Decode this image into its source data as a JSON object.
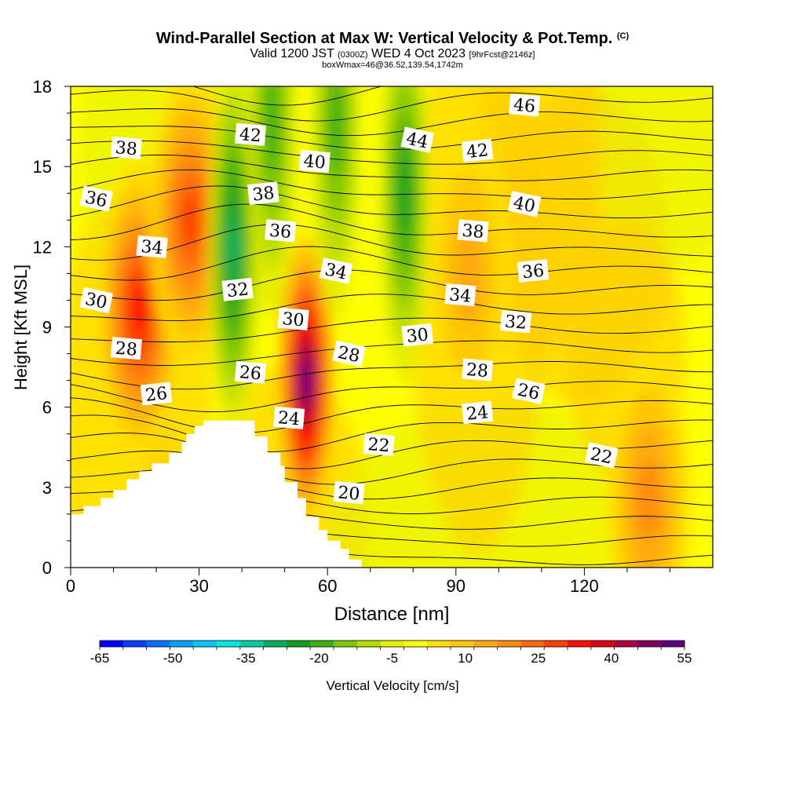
{
  "header": {
    "title": "Wind-Parallel Section at Max W: Vertical Velocity & Pot.Temp.",
    "copyright": "(C)",
    "valid_prefix": "Valid 1200 JST",
    "valid_utc": "(0300Z)",
    "valid_date": "WED 4 Oct 2023",
    "forecast": "[9hrFcst@2146z]",
    "box_info": "boxWmax=46@36.52,139.54,1742m"
  },
  "chart_data": {
    "type": "heatmap",
    "xlabel": "Distance [nm]",
    "ylabel": "Height [Kft MSL]",
    "xlim": [
      0,
      150
    ],
    "ylim": [
      0,
      18
    ],
    "x_ticks": [
      0,
      30,
      60,
      90,
      120
    ],
    "y_ticks": [
      0,
      3,
      6,
      9,
      12,
      15,
      18
    ],
    "colorbar": {
      "label": "Vertical Velocity [cm/s]",
      "tick_labels": [
        "-65",
        "-50",
        "-35",
        "-20",
        "-5",
        "10",
        "25",
        "40",
        "55"
      ],
      "colors": [
        "#0000ff",
        "#0040ff",
        "#0070ff",
        "#00a0ff",
        "#00c8ff",
        "#00e8e0",
        "#00d0a0",
        "#00b060",
        "#10a020",
        "#40b010",
        "#80c800",
        "#b8dc00",
        "#e6ee00",
        "#ffff00",
        "#ffe000",
        "#ffc800",
        "#ffaa10",
        "#ff8c10",
        "#ff6a10",
        "#ff4000",
        "#ff1000",
        "#e00010",
        "#b00040",
        "#800060",
        "#5a0080"
      ]
    },
    "theta_labels": [
      {
        "value": "46",
        "x": 106,
        "y": 17.3
      },
      {
        "value": "44",
        "x": 81,
        "y": 16.0
      },
      {
        "value": "42",
        "x": 42,
        "y": 16.2
      },
      {
        "value": "42",
        "x": 95,
        "y": 15.6
      },
      {
        "value": "40",
        "x": 57,
        "y": 15.2
      },
      {
        "value": "40",
        "x": 106,
        "y": 13.6
      },
      {
        "value": "38",
        "x": 13,
        "y": 15.7
      },
      {
        "value": "38",
        "x": 45,
        "y": 14.0
      },
      {
        "value": "38",
        "x": 94,
        "y": 12.6
      },
      {
        "value": "36",
        "x": 6,
        "y": 13.8
      },
      {
        "value": "36",
        "x": 49,
        "y": 12.6
      },
      {
        "value": "36",
        "x": 108,
        "y": 11.1
      },
      {
        "value": "34",
        "x": 19,
        "y": 12.0
      },
      {
        "value": "34",
        "x": 62,
        "y": 11.1
      },
      {
        "value": "34",
        "x": 91,
        "y": 10.2
      },
      {
        "value": "32",
        "x": 39,
        "y": 10.4
      },
      {
        "value": "32",
        "x": 104,
        "y": 9.2
      },
      {
        "value": "30",
        "x": 6,
        "y": 10.0
      },
      {
        "value": "30",
        "x": 52,
        "y": 9.3
      },
      {
        "value": "30",
        "x": 81,
        "y": 8.7
      },
      {
        "value": "28",
        "x": 13,
        "y": 8.2
      },
      {
        "value": "28",
        "x": 65,
        "y": 8.0
      },
      {
        "value": "28",
        "x": 95,
        "y": 7.4
      },
      {
        "value": "26",
        "x": 20,
        "y": 6.5
      },
      {
        "value": "26",
        "x": 42,
        "y": 7.3
      },
      {
        "value": "26",
        "x": 107,
        "y": 6.6
      },
      {
        "value": "24",
        "x": 51,
        "y": 5.6
      },
      {
        "value": "24",
        "x": 95,
        "y": 5.8
      },
      {
        "value": "22",
        "x": 72,
        "y": 4.6
      },
      {
        "value": "22",
        "x": 124,
        "y": 4.2
      },
      {
        "value": "20",
        "x": 65,
        "y": 2.8
      }
    ],
    "velocity_features": [
      {
        "kind": "updraft",
        "x": 16,
        "y": 9.6,
        "peak_cm_s": 35
      },
      {
        "kind": "updraft",
        "x": 28,
        "y": 13.0,
        "peak_cm_s": 30
      },
      {
        "kind": "updraft",
        "x": 55,
        "y": 7.0,
        "peak_cm_s": 55
      },
      {
        "kind": "updraft",
        "x": 135,
        "y": 2.5,
        "peak_cm_s": 20
      },
      {
        "kind": "updraft",
        "x": 93,
        "y": 11.0,
        "peak_cm_s": 15
      },
      {
        "kind": "downdraft",
        "x": 38,
        "y": 12.0,
        "peak_cm_s": -30
      },
      {
        "kind": "downdraft",
        "x": 78,
        "y": 14.0,
        "peak_cm_s": -25
      },
      {
        "kind": "downdraft",
        "x": 62,
        "y": 16.5,
        "peak_cm_s": -20
      },
      {
        "kind": "downdraft",
        "x": 47,
        "y": 16.5,
        "peak_cm_s": -20
      }
    ],
    "terrain_profile": [
      [
        0,
        2.0
      ],
      [
        3,
        2.0
      ],
      [
        3,
        2.3
      ],
      [
        7,
        2.3
      ],
      [
        7,
        2.6
      ],
      [
        10,
        2.6
      ],
      [
        10,
        2.9
      ],
      [
        13,
        2.9
      ],
      [
        13,
        3.3
      ],
      [
        16,
        3.3
      ],
      [
        16,
        3.6
      ],
      [
        19,
        3.6
      ],
      [
        19,
        3.9
      ],
      [
        23,
        3.9
      ],
      [
        23,
        4.3
      ],
      [
        26,
        4.3
      ],
      [
        26,
        4.7
      ],
      [
        27,
        4.7
      ],
      [
        27,
        5.0
      ],
      [
        29,
        5.0
      ],
      [
        29,
        5.3
      ],
      [
        31,
        5.3
      ],
      [
        31,
        5.5
      ],
      [
        43,
        5.5
      ],
      [
        43,
        4.9
      ],
      [
        46,
        4.9
      ],
      [
        46,
        4.3
      ],
      [
        49,
        4.3
      ],
      [
        49,
        3.8
      ],
      [
        50,
        3.8
      ],
      [
        50,
        3.2
      ],
      [
        53,
        3.2
      ],
      [
        53,
        2.6
      ],
      [
        55,
        2.6
      ],
      [
        55,
        1.9
      ],
      [
        58,
        1.9
      ],
      [
        58,
        1.4
      ],
      [
        60,
        1.4
      ],
      [
        60,
        1.0
      ],
      [
        63,
        1.0
      ],
      [
        63,
        0.7
      ],
      [
        65,
        0.7
      ],
      [
        65,
        0.3
      ],
      [
        68,
        0.3
      ],
      [
        68,
        0.0
      ]
    ]
  }
}
